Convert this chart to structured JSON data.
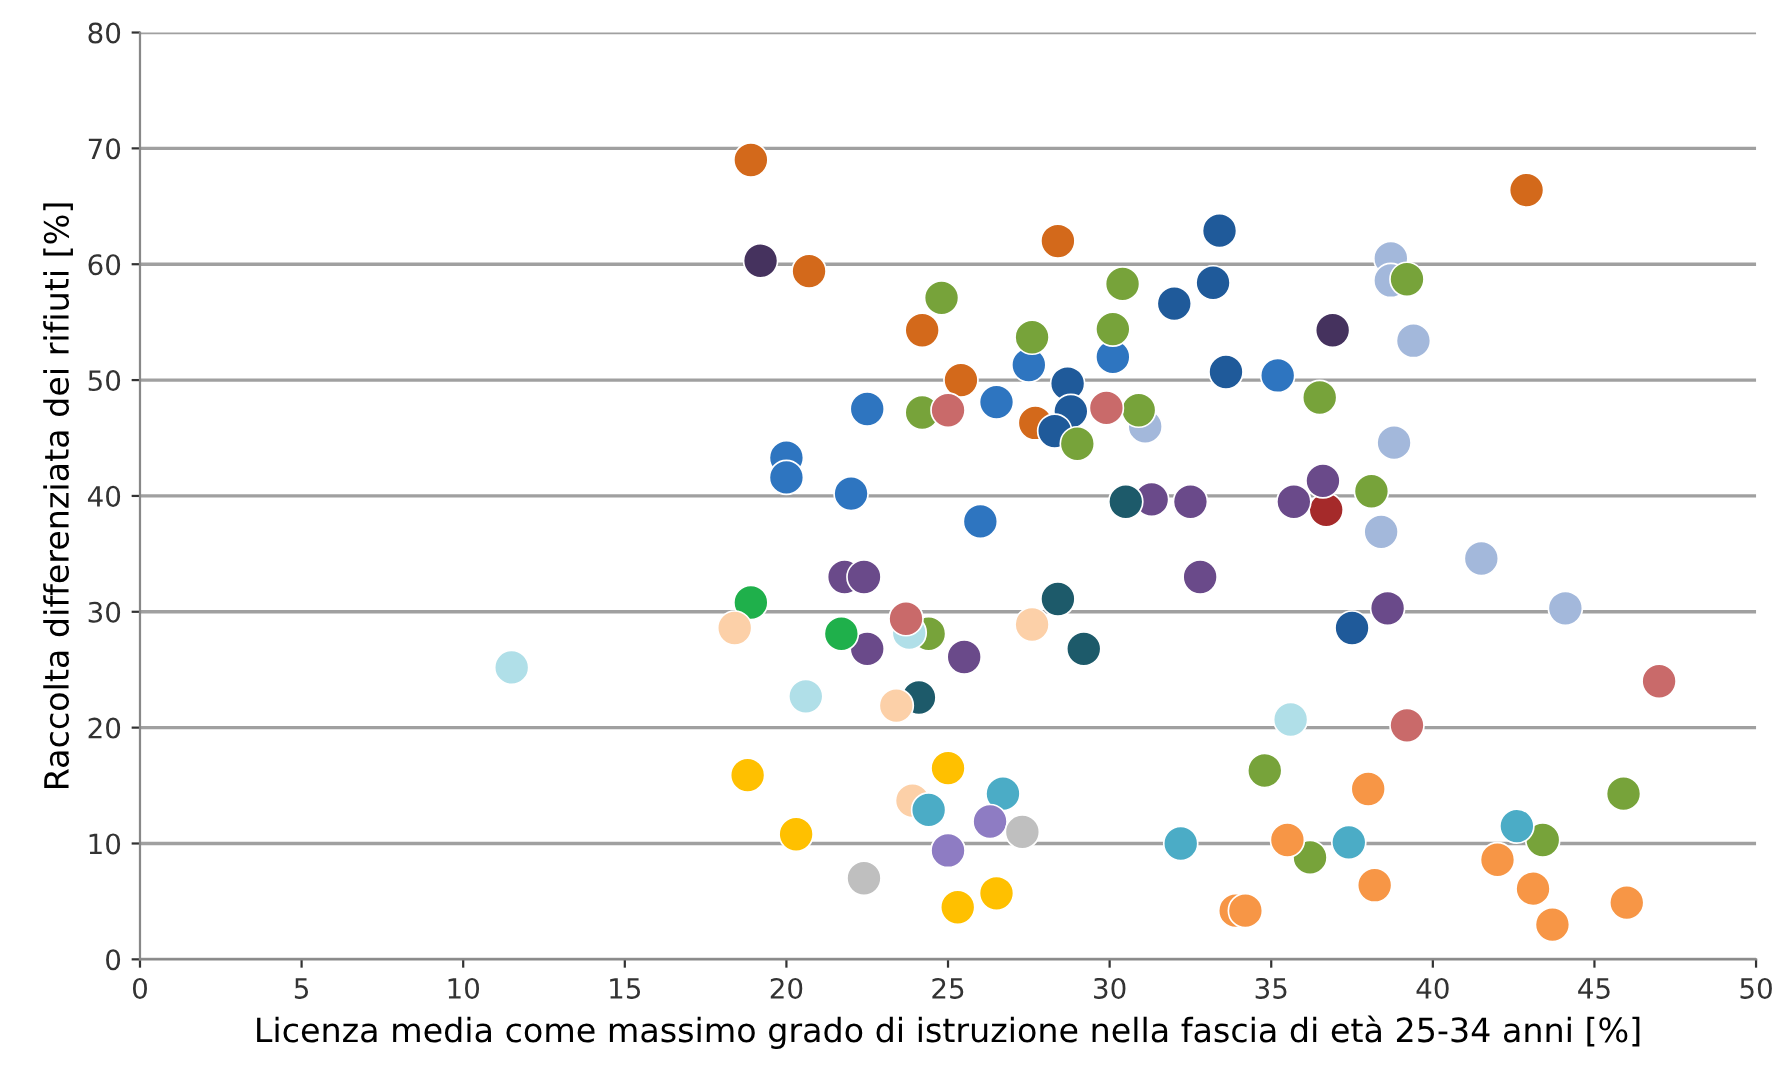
{
  "chart_data": {
    "type": "scatter",
    "xlabel": "Licenza media come massimo grado di istruzione nella fascia di età 25-34 anni [%]",
    "ylabel": "Raccolta differenziata dei rifiuti [%]",
    "xlim": [
      0,
      50
    ],
    "xticks": [
      0,
      5,
      10,
      15,
      20,
      25,
      30,
      35,
      40,
      45,
      50
    ],
    "ylim": [
      0,
      80
    ],
    "yticks": [
      0,
      10,
      20,
      30,
      40,
      50,
      60,
      70,
      80
    ],
    "grid": "y",
    "marker": "circle",
    "legend": false,
    "series": [
      {
        "color": "#d3691b",
        "x": [
          18.9,
          42.9,
          20.7,
          28.4,
          24.2,
          25.4,
          27.7
        ],
        "values": [
          69.0,
          66.4,
          59.4,
          62.0,
          54.3,
          50.0,
          46.3
        ]
      },
      {
        "color": "#1f5a9a",
        "x": [
          33.4,
          33.2,
          32.0,
          33.6,
          28.7,
          28.8,
          28.3,
          37.5
        ],
        "values": [
          62.9,
          58.4,
          56.6,
          50.7,
          49.7,
          47.3,
          45.6,
          28.6
        ]
      },
      {
        "color": "#2e75c0",
        "x": [
          27.5,
          30.1,
          26.5,
          22.5,
          20.0,
          20.0,
          22.0,
          26.0,
          35.2
        ],
        "values": [
          51.3,
          52.0,
          48.1,
          47.5,
          43.3,
          41.6,
          40.2,
          37.8,
          50.4
        ]
      },
      {
        "color": "#45325e",
        "x": [
          19.2,
          36.9
        ],
        "values": [
          60.3,
          54.3
        ]
      },
      {
        "color": "#a3b8db",
        "x": [
          38.7,
          38.7,
          39.4,
          38.8,
          38.4,
          41.5,
          44.1,
          31.1
        ],
        "values": [
          60.5,
          58.6,
          53.4,
          44.6,
          36.9,
          34.6,
          30.3,
          46.0
        ]
      },
      {
        "color": "#77a33a",
        "x": [
          24.8,
          30.4,
          27.6,
          30.1,
          24.2,
          30.9,
          29.0,
          39.2,
          36.5,
          38.1,
          24.4,
          34.8,
          36.2,
          43.4,
          45.9
        ],
        "values": [
          57.1,
          58.3,
          53.7,
          54.4,
          47.2,
          47.4,
          44.5,
          58.7,
          48.5,
          40.4,
          28.1,
          16.3,
          8.8,
          10.3,
          14.3
        ]
      },
      {
        "color": "#a52a2a",
        "x": [
          36.7
        ],
        "values": [
          38.8
        ]
      },
      {
        "color": "#6a4a8a",
        "x": [
          31.3,
          32.5,
          36.6,
          35.7,
          21.8,
          22.4,
          22.5,
          25.5,
          32.8,
          38.6
        ],
        "values": [
          39.7,
          39.5,
          41.3,
          39.5,
          33.0,
          33.0,
          26.8,
          26.1,
          33.0,
          30.3
        ]
      },
      {
        "color": "#1d5a6a",
        "x": [
          30.5,
          28.4,
          29.2,
          24.1
        ],
        "values": [
          39.5,
          31.1,
          26.8,
          22.6
        ]
      },
      {
        "color": "#1fb04b",
        "x": [
          18.9,
          21.7
        ],
        "values": [
          30.8,
          28.1
        ]
      },
      {
        "color": "#fcd0a8",
        "x": [
          18.4,
          27.6,
          23.4,
          23.9
        ],
        "values": [
          28.6,
          28.9,
          21.9,
          13.7
        ]
      },
      {
        "color": "#b0dfe8",
        "x": [
          23.8,
          20.6,
          35.6,
          11.5
        ],
        "values": [
          28.2,
          22.7,
          20.7,
          25.2
        ]
      },
      {
        "color": "#ffc000",
        "x": [
          18.8,
          25.0,
          20.3,
          25.3,
          26.5
        ],
        "values": [
          15.9,
          16.5,
          10.8,
          4.5,
          5.7
        ]
      },
      {
        "color": "#4bacc6",
        "x": [
          24.4,
          26.7,
          32.2,
          37.4,
          42.6
        ],
        "values": [
          12.9,
          14.3,
          10.0,
          10.1,
          11.5
        ]
      },
      {
        "color": "#8e7cc3",
        "x": [
          26.3,
          25.0
        ],
        "values": [
          11.9,
          9.4
        ]
      },
      {
        "color": "#bfbfbf",
        "x": [
          27.3,
          22.4
        ],
        "values": [
          11.0,
          7.0
        ]
      },
      {
        "color": "#f79646",
        "x": [
          38.0,
          35.5,
          38.2,
          33.9,
          34.2,
          42.0,
          43.1,
          43.7,
          46.0
        ],
        "values": [
          14.7,
          10.3,
          6.4,
          4.2,
          4.2,
          8.6,
          6.1,
          3.0,
          4.9
        ]
      },
      {
        "color": "#c96a6a",
        "x": [
          25.0,
          29.9,
          23.7,
          39.2,
          47.0
        ],
        "values": [
          47.4,
          47.6,
          29.4,
          20.2,
          24.0
        ]
      }
    ]
  }
}
